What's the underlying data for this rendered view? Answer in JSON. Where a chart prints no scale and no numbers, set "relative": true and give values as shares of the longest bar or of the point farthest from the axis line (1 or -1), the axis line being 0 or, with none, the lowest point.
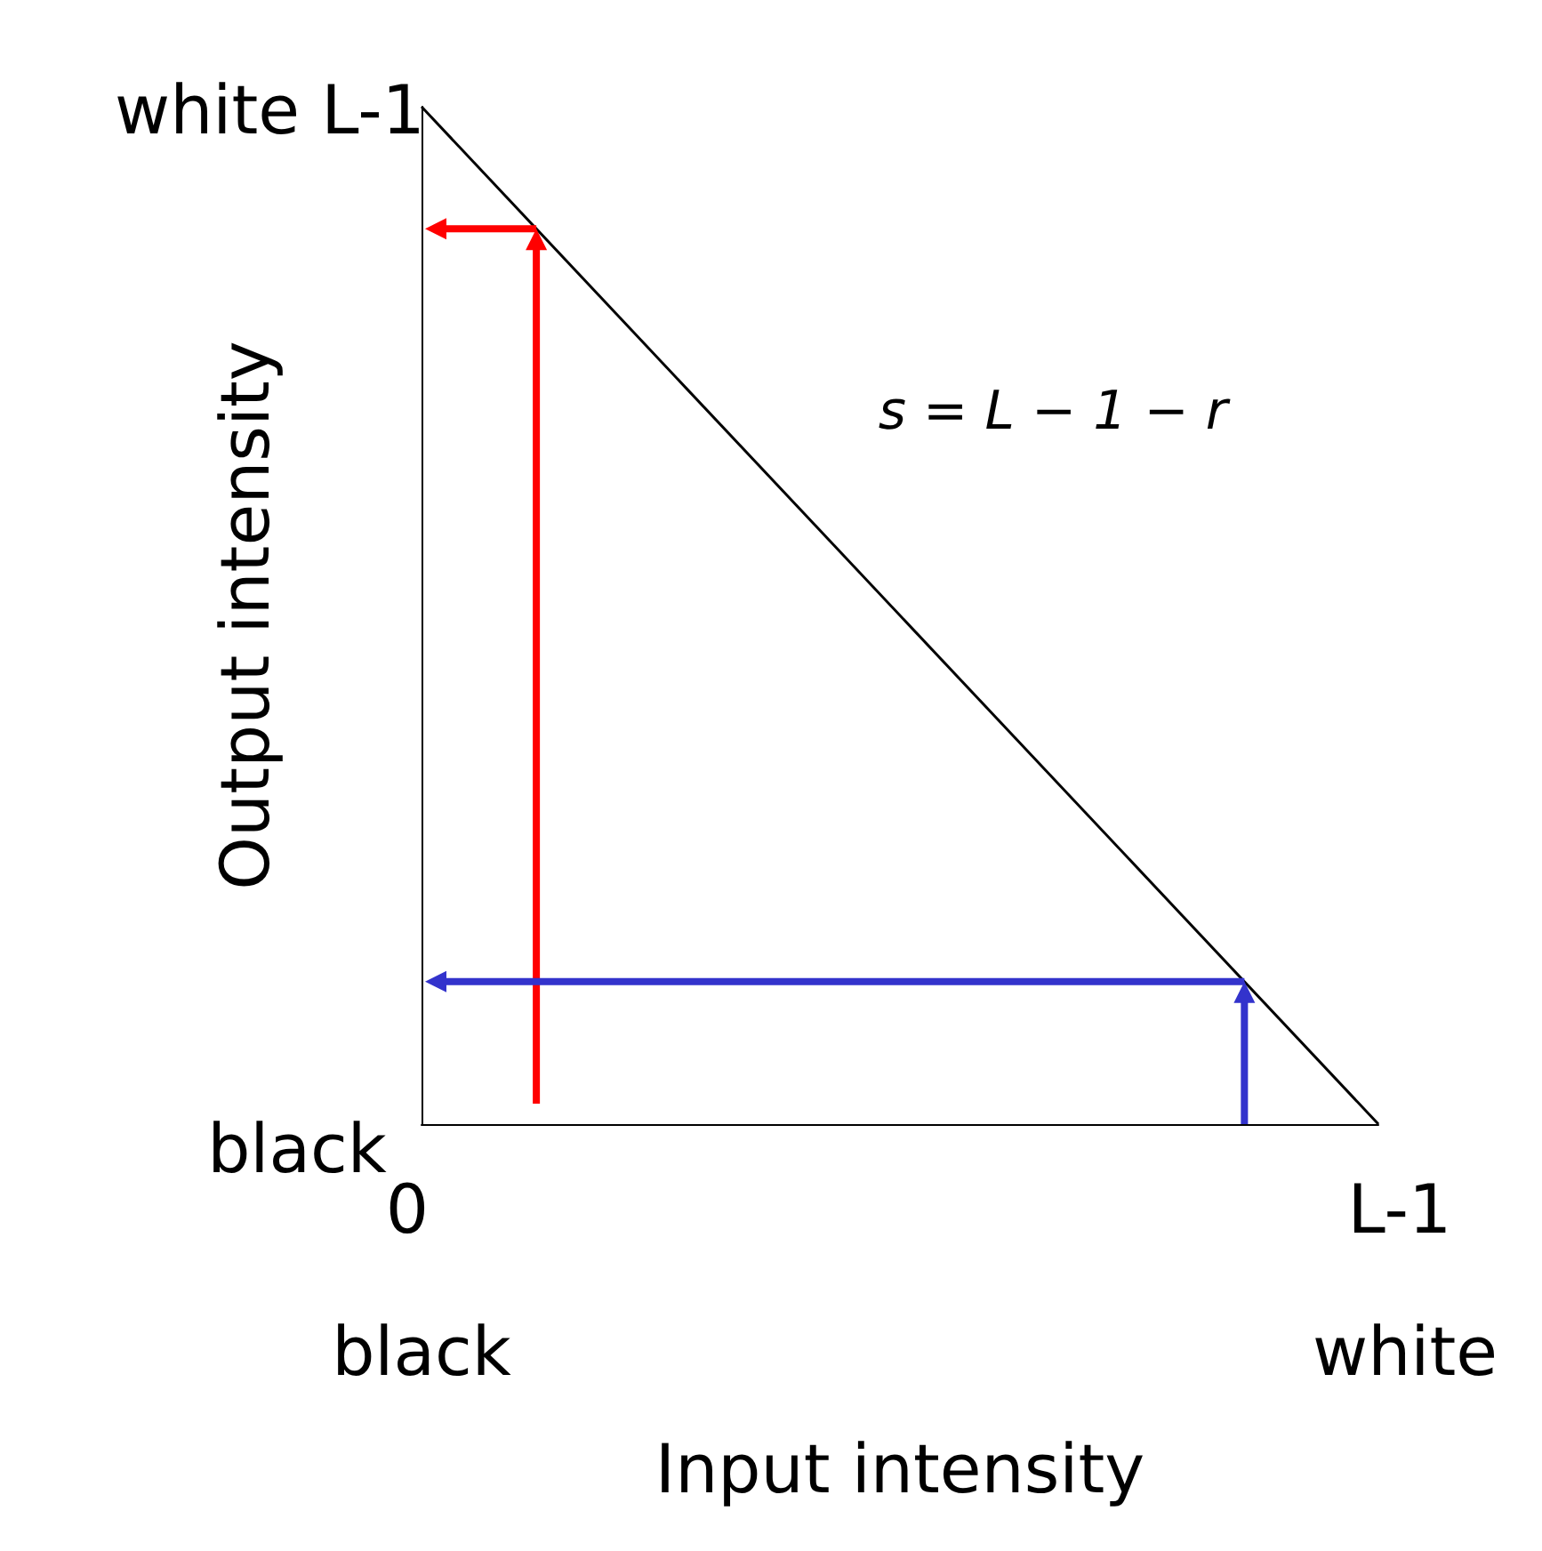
{
  "chart_data": {
    "type": "line",
    "xlabel": "Input intensity",
    "ylabel": "Output intensity",
    "relative": true,
    "categories": [
      null,
      null
    ],
    "series": [
      {
        "color": "#000000",
        "values": [
          1,
          0
        ]
      }
    ],
    "annotations": [
      "white L-1",
      "black",
      "0",
      "L-1",
      "black",
      "white",
      "s = L − 1 − r"
    ],
    "grid": false,
    "marker": "none",
    "line_style": "solid"
  }
}
